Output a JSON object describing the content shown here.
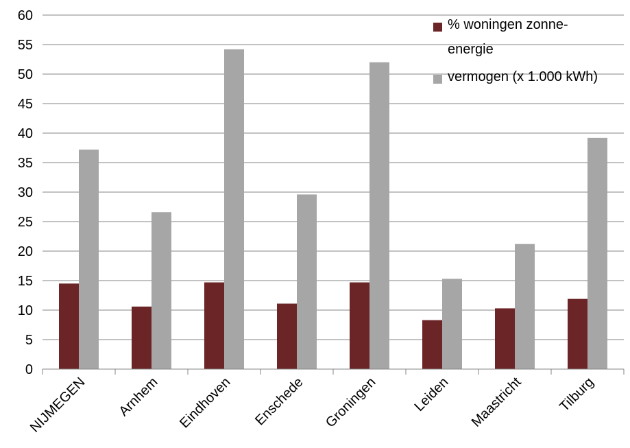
{
  "chart_data": {
    "type": "bar",
    "title": "",
    "xlabel": "",
    "ylabel": "",
    "ylim": [
      0,
      60
    ],
    "yticks": [
      0,
      5,
      10,
      15,
      20,
      25,
      30,
      35,
      40,
      45,
      50,
      55,
      60
    ],
    "grid": "horizontal",
    "legend_position": "top-right",
    "categories": [
      "NIJMEGEN",
      "Arnhem",
      "Eindhoven",
      "Enschede",
      "Groningen",
      "Leiden",
      "Maastricht",
      "Tilburg"
    ],
    "series": [
      {
        "name": "% woningen zonne-energie",
        "name_lines": [
          "% woningen zonne-",
          "energie"
        ],
        "color": "#6b2527",
        "values": [
          14.5,
          10.6,
          14.7,
          11.1,
          14.7,
          8.3,
          10.3,
          11.9
        ]
      },
      {
        "name": "vermogen (x 1.000 kWh)",
        "name_lines": [
          "vermogen (x 1.000 kWh)"
        ],
        "color": "#a6a6a6",
        "values": [
          37.2,
          26.6,
          54.2,
          29.6,
          52.0,
          15.3,
          21.2,
          39.2
        ]
      }
    ]
  }
}
